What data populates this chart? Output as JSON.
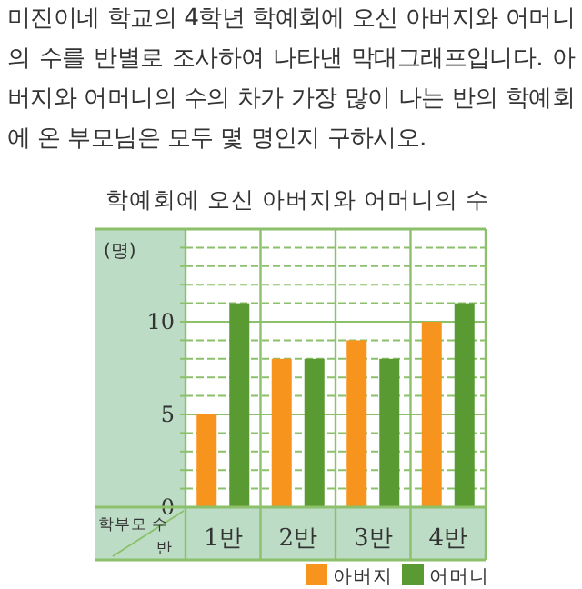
{
  "chart_data": {
    "type": "bar",
    "title": "학예회에 오신 아버지와 어머니의 수",
    "xlabel": "반",
    "ylabel": "학부모 수",
    "annotations": [
      "미진이네 학교의 4학년 학예회에 오신 아버지와 어머니의 수를 반별로 조사하여 나타낸 막대그래프입니다. 아버지와 어머니의 수의 차가 가장 많이 나는 반의 학예회에 온 부모님은 모두 몇 명인지 구하시오.",
      "(명)"
    ],
    "categories": [
      "1반",
      "2반",
      "3반",
      "4반"
    ],
    "series": [
      {
        "name": "아버지",
        "color": "#f7941d",
        "values": [
          5,
          8,
          9,
          10
        ]
      },
      {
        "name": "어머니",
        "color": "#5a9a32",
        "values": [
          11,
          8,
          8,
          11
        ]
      }
    ],
    "ylim": [
      0,
      15
    ],
    "yticks": [
      0,
      {
        "value": 1,
        "label": null
      },
      {
        "value": 2,
        "label": null
      },
      {
        "value": 3,
        "label": null
      },
      {
        "value": 4,
        "label": null
      },
      5,
      {
        "value": 6,
        "label": null
      },
      {
        "value": 7,
        "label": null
      },
      {
        "value": 8,
        "label": null
      },
      {
        "value": 9,
        "label": null
      },
      10,
      {
        "value": 11,
        "label": null
      },
      {
        "value": 12,
        "label": null
      },
      {
        "value": 13,
        "label": null
      },
      {
        "value": 14,
        "label": null
      }
    ],
    "grid": "y",
    "legend": "bottom right"
  }
}
